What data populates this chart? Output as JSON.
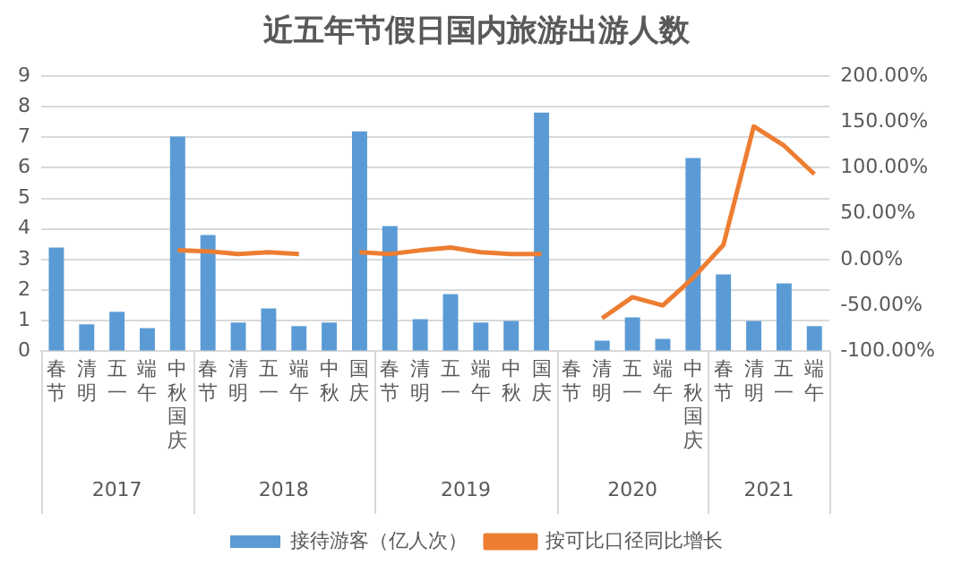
{
  "chart_data": {
    "type": "bar",
    "title": "近五年节假日国内旅游出游人数",
    "categories": [
      "春节",
      "清明",
      "五一",
      "端午",
      "中秋国庆",
      "春节",
      "清明",
      "五一",
      "端午",
      "中秋",
      "国庆",
      "春节",
      "清明",
      "五一",
      "端午",
      "中秋",
      "国庆",
      "春节",
      "清明",
      "五一",
      "端午",
      "中秋国庆",
      "春节",
      "清明",
      "五一",
      "端午"
    ],
    "series": [
      {
        "name": "接待游客（亿人次）",
        "color": "#5b9bd5",
        "values": [
          3.39,
          0.88,
          1.29,
          0.76,
          7.02,
          3.8,
          0.94,
          1.4,
          0.82,
          0.94,
          7.19,
          4.09,
          1.05,
          1.87,
          0.94,
          0.99,
          7.8,
          null,
          0.35,
          1.11,
          0.41,
          6.32,
          2.51,
          0.99,
          2.22,
          0.82
        ]
      },
      {
        "name": "按可比口径同比增长",
        "type": "line",
        "axis": "y2",
        "color": "#ed7d31",
        "values": [
          null,
          null,
          null,
          null,
          10,
          9,
          6,
          8,
          6,
          null,
          8,
          6,
          10,
          13,
          8,
          6,
          6,
          null,
          -64,
          -41,
          -50,
          -20,
          16,
          145,
          124,
          93
        ]
      }
    ],
    "ylim": [
      0,
      9
    ],
    "yticks": [
      0,
      1,
      2,
      3,
      4,
      5,
      6,
      7,
      8,
      9
    ],
    "y2lim": [
      -100,
      200
    ],
    "annotations": [
      "2017",
      "2018",
      "2019",
      "2020",
      "2021"
    ],
    "y2ticks": [
      {
        "value": -100,
        "label": "-100.00%"
      },
      {
        "value": -50,
        "label": "-50.00%"
      },
      {
        "value": 0,
        "label": "0.00%"
      },
      {
        "value": 50,
        "label": "50.00%"
      },
      {
        "value": 100,
        "label": "100.00%"
      },
      {
        "value": 150,
        "label": "150.00%"
      },
      {
        "value": 200,
        "label": "200.00%"
      }
    ],
    "grid": "y",
    "legend": "bottom",
    "marker": "none"
  }
}
